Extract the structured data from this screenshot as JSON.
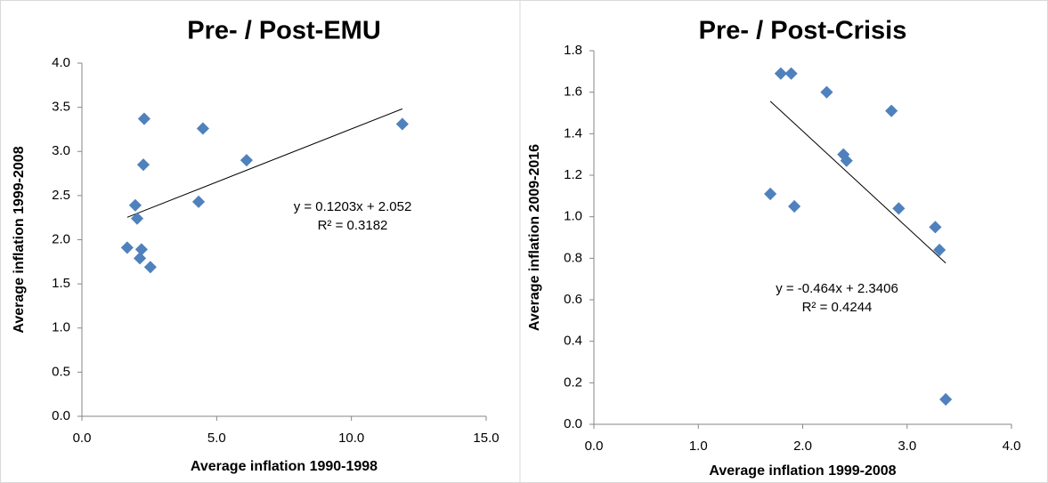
{
  "chart_data": [
    {
      "type": "scatter",
      "title": "Pre- / Post-EMU",
      "x_label": "Average inflation 1990-1998",
      "y_label": "Average inflation 1999-2008",
      "color": "#4f81bd",
      "x": [
        1.68,
        1.98,
        2.05,
        2.15,
        2.21,
        2.28,
        2.31,
        2.54,
        4.33,
        4.49,
        6.11,
        11.89
      ],
      "y": [
        1.91,
        2.39,
        2.24,
        1.79,
        1.89,
        2.85,
        3.37,
        1.69,
        2.43,
        3.26,
        2.9,
        3.31
      ],
      "xlim": [
        0,
        15
      ],
      "xticks": [
        {
          "value": 0,
          "label": "0.0"
        },
        {
          "value": 5,
          "label": "5.0"
        },
        {
          "value": 10,
          "label": "10.0"
        },
        {
          "value": 15,
          "label": "15.0"
        }
      ],
      "ylim": [
        0,
        4
      ],
      "yticks": [
        {
          "value": 0,
          "label": "0.0"
        },
        0.5,
        {
          "value": 1,
          "label": "1.0"
        },
        1.5,
        {
          "value": 2,
          "label": "2.0"
        },
        2.5,
        {
          "value": 3,
          "label": "3.0"
        },
        3.5,
        {
          "value": 4,
          "label": "4.0"
        }
      ],
      "trendline": {
        "slope": 0.1203,
        "intercept": 2.052,
        "equation": "y = 0.1203x + 2.052",
        "r_squared": "R² = 0.3182"
      }
    },
    {
      "type": "scatter",
      "title": "Pre- / Post-Crisis",
      "x_label": "Average inflation 1999-2008",
      "y_label": "Average inflation 2009-2016",
      "color": "#4f81bd",
      "x": [
        1.69,
        1.79,
        1.89,
        1.92,
        2.23,
        2.39,
        2.42,
        2.85,
        2.92,
        3.27,
        3.31,
        3.37
      ],
      "y": [
        1.11,
        1.69,
        1.69,
        1.05,
        1.6,
        1.3,
        1.27,
        1.51,
        1.04,
        0.95,
        0.84,
        0.12
      ],
      "xlim": [
        0,
        4
      ],
      "xticks": [
        {
          "value": 0,
          "label": "0.0"
        },
        {
          "value": 1,
          "label": "1.0"
        },
        {
          "value": 2,
          "label": "2.0"
        },
        {
          "value": 3,
          "label": "3.0"
        },
        {
          "value": 4,
          "label": "4.0"
        }
      ],
      "ylim": [
        0,
        1.8
      ],
      "yticks": [
        {
          "value": 0,
          "label": "0.0"
        },
        0.2,
        0.4,
        0.6,
        0.8,
        {
          "value": 1,
          "label": "1.0"
        },
        1.2,
        1.4,
        1.6,
        1.8
      ],
      "trendline": {
        "slope": -0.464,
        "intercept": 2.3406,
        "equation": "y = -0.464x + 2.3406",
        "r_squared": "R² = 0.4244"
      }
    }
  ]
}
